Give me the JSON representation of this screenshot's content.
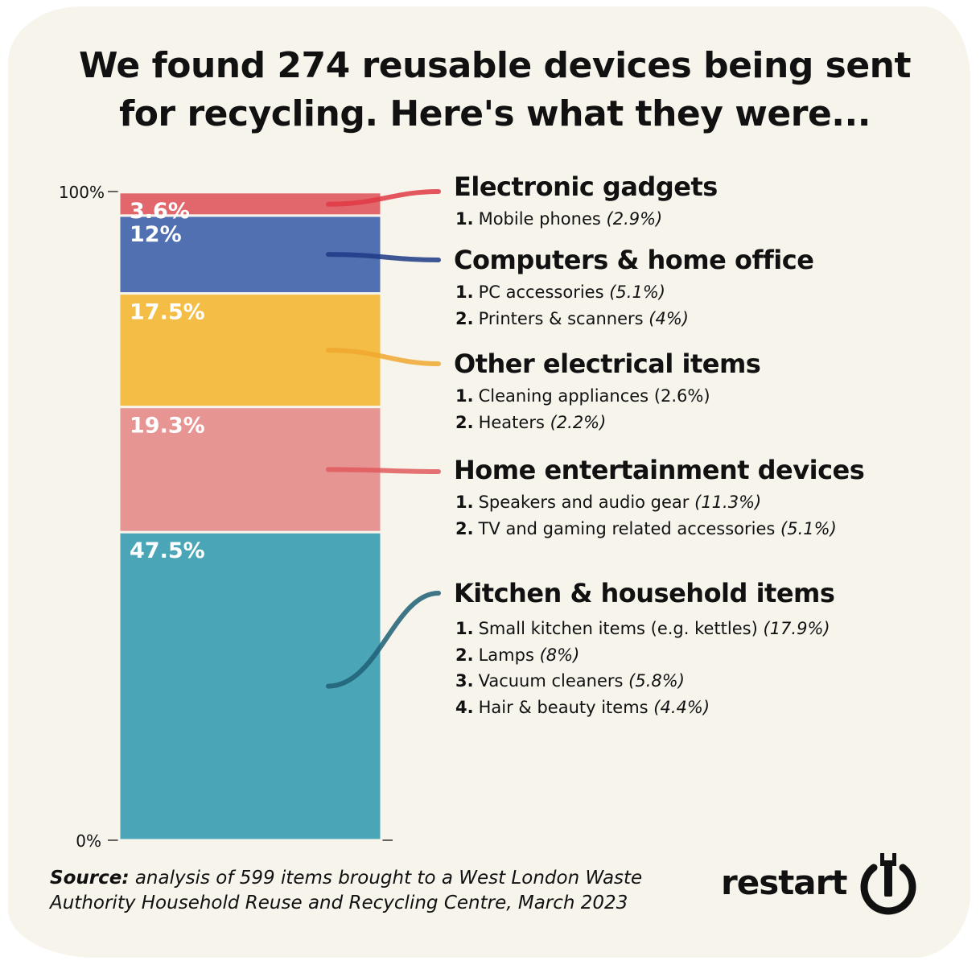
{
  "title": {
    "line1": "We found 274 reusable devices being sent",
    "line2": "for recycling. Here's what they were..."
  },
  "chart_data": {
    "type": "bar",
    "stacked": true,
    "ylim": [
      0,
      100
    ],
    "y_ticks": [
      "0%",
      "100%"
    ],
    "segments": [
      {
        "name": "Kitchen & household items",
        "value": 47.5,
        "label": "47.5%",
        "color": "#4aa5b7",
        "connector_color": "#1f5f76"
      },
      {
        "name": "Home entertainment devices",
        "value": 19.3,
        "label": "19.3%",
        "color": "#e79593",
        "connector_color": "#e05a5e"
      },
      {
        "name": "Other electrical items",
        "value": 17.5,
        "label": "17.5%",
        "color": "#f4bd45",
        "connector_color": "#f0a830"
      },
      {
        "name": "Computers & home office",
        "value": 12,
        "label": "12%",
        "color": "#5170b2",
        "connector_color": "#1e3a86"
      },
      {
        "name": "Electronic gadgets",
        "value": 3.6,
        "label": "3.6%",
        "color": "#e2676c",
        "connector_color": "#e03a45"
      }
    ]
  },
  "categories": [
    {
      "title": "Electronic gadgets",
      "items": [
        {
          "num": "1.",
          "text": "Mobile phones",
          "value": "(2.9%)"
        }
      ]
    },
    {
      "title": "Computers & home office",
      "items": [
        {
          "num": "1.",
          "text": "PC accessories",
          "value": "(5.1%)"
        },
        {
          "num": "2.",
          "text": "Printers & scanners",
          "value": "(4%)"
        }
      ]
    },
    {
      "title": "Other electrical items",
      "items": [
        {
          "num": "1.",
          "text": "Cleaning appliances",
          "value": "(2.6%)"
        },
        {
          "num": "2.",
          "text": "Heaters",
          "value": "(2.2%)"
        }
      ]
    },
    {
      "title": "Home entertainment devices",
      "items": [
        {
          "num": "1.",
          "text": "Speakers and audio gear",
          "value": "(11.3%)"
        },
        {
          "num": "2.",
          "text": "TV and gaming related accessories",
          "value": "(5.1%)"
        }
      ]
    },
    {
      "title": "Kitchen & household items",
      "items": [
        {
          "num": "1.",
          "text": "Small kitchen items (e.g. kettles)",
          "value": "(17.9%)"
        },
        {
          "num": "2.",
          "text": "Lamps",
          "value": "(8%)"
        },
        {
          "num": "3.",
          "text": "Vacuum cleaners",
          "value": "(5.8%)"
        },
        {
          "num": "4.",
          "text": "Hair & beauty items",
          "value": "(4.4%)"
        }
      ]
    }
  ],
  "source": {
    "label": "Source:",
    "text": "analysis of 599 items brought to a West London Waste Authority Household Reuse and Recycling Centre, March 2023"
  },
  "logo": {
    "text": "restart",
    "icon": "power-wrench-icon"
  }
}
